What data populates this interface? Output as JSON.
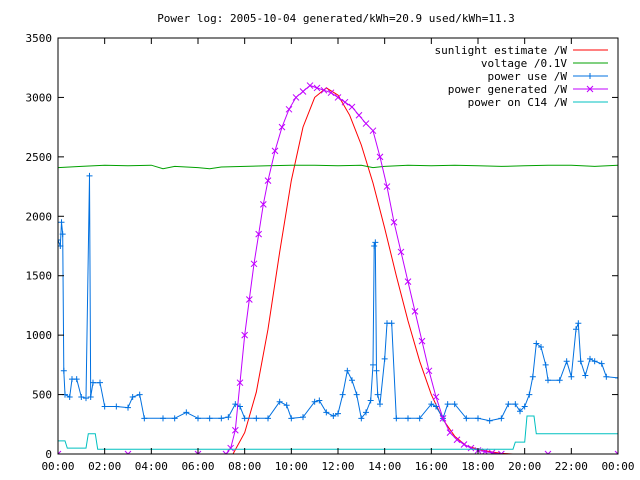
{
  "chart_data": {
    "type": "line",
    "title": "Power log: 2005-10-04 generated/kWh=20.9 used/kWh=11.3",
    "xlabel": "",
    "ylabel": "",
    "xlim": [
      0,
      24
    ],
    "ylim": [
      0,
      3500
    ],
    "x_ticks": [
      "00:00",
      "02:00",
      "04:00",
      "06:00",
      "08:00",
      "10:00",
      "12:00",
      "14:00",
      "16:00",
      "18:00",
      "20:00",
      "22:00",
      "00:00"
    ],
    "y_ticks": [
      0,
      500,
      1000,
      1500,
      2000,
      2500,
      3000,
      3500
    ],
    "grid": false,
    "legend_position": "top-right",
    "series": [
      {
        "name": "sunlight estimate /W",
        "color": "#ff0000",
        "marker": "none",
        "points": [
          [
            7.5,
            0
          ],
          [
            8.0,
            180
          ],
          [
            8.5,
            520
          ],
          [
            9.0,
            1050
          ],
          [
            9.5,
            1700
          ],
          [
            10.0,
            2300
          ],
          [
            10.5,
            2750
          ],
          [
            11.0,
            3000
          ],
          [
            11.5,
            3080
          ],
          [
            12.0,
            3020
          ],
          [
            12.5,
            2850
          ],
          [
            13.0,
            2600
          ],
          [
            13.5,
            2280
          ],
          [
            14.0,
            1900
          ],
          [
            14.5,
            1500
          ],
          [
            15.0,
            1120
          ],
          [
            15.5,
            780
          ],
          [
            16.0,
            500
          ],
          [
            16.5,
            290
          ],
          [
            17.0,
            150
          ],
          [
            17.5,
            70
          ],
          [
            18.0,
            40
          ],
          [
            18.5,
            20
          ],
          [
            19.0,
            5
          ],
          [
            19.5,
            0
          ]
        ]
      },
      {
        "name": "voltage /0.1V",
        "color": "#00a000",
        "marker": "none",
        "points": [
          [
            0.0,
            2410
          ],
          [
            1.0,
            2420
          ],
          [
            2.0,
            2430
          ],
          [
            3.0,
            2425
          ],
          [
            4.0,
            2430
          ],
          [
            4.5,
            2400
          ],
          [
            5.0,
            2420
          ],
          [
            6.0,
            2410
          ],
          [
            6.5,
            2400
          ],
          [
            7.0,
            2415
          ],
          [
            8.0,
            2420
          ],
          [
            9.0,
            2425
          ],
          [
            10.0,
            2430
          ],
          [
            11.0,
            2430
          ],
          [
            12.0,
            2425
          ],
          [
            13.0,
            2430
          ],
          [
            13.5,
            2410
          ],
          [
            14.0,
            2420
          ],
          [
            15.0,
            2430
          ],
          [
            16.0,
            2425
          ],
          [
            17.0,
            2430
          ],
          [
            18.0,
            2425
          ],
          [
            19.0,
            2420
          ],
          [
            20.0,
            2425
          ],
          [
            21.0,
            2430
          ],
          [
            22.0,
            2430
          ],
          [
            23.0,
            2420
          ],
          [
            24.0,
            2430
          ]
        ]
      },
      {
        "name": "power use /W",
        "color": "#0070e0",
        "marker": "plus",
        "points": [
          [
            0.0,
            1800
          ],
          [
            0.1,
            1750
          ],
          [
            0.15,
            1950
          ],
          [
            0.2,
            1850
          ],
          [
            0.25,
            700
          ],
          [
            0.3,
            500
          ],
          [
            0.5,
            480
          ],
          [
            0.6,
            630
          ],
          [
            0.8,
            630
          ],
          [
            1.0,
            480
          ],
          [
            1.2,
            470
          ],
          [
            1.35,
            2340
          ],
          [
            1.4,
            480
          ],
          [
            1.5,
            600
          ],
          [
            1.8,
            600
          ],
          [
            2.0,
            400
          ],
          [
            2.5,
            400
          ],
          [
            3.0,
            390
          ],
          [
            3.2,
            480
          ],
          [
            3.5,
            500
          ],
          [
            3.7,
            300
          ],
          [
            4.5,
            300
          ],
          [
            5.0,
            300
          ],
          [
            5.5,
            350
          ],
          [
            6.0,
            300
          ],
          [
            6.5,
            300
          ],
          [
            7.0,
            300
          ],
          [
            7.3,
            310
          ],
          [
            7.6,
            420
          ],
          [
            7.8,
            400
          ],
          [
            8.0,
            300
          ],
          [
            8.5,
            300
          ],
          [
            9.0,
            300
          ],
          [
            9.5,
            440
          ],
          [
            9.8,
            410
          ],
          [
            10.0,
            300
          ],
          [
            10.5,
            310
          ],
          [
            11.0,
            440
          ],
          [
            11.2,
            450
          ],
          [
            11.5,
            350
          ],
          [
            11.8,
            320
          ],
          [
            12.0,
            340
          ],
          [
            12.2,
            500
          ],
          [
            12.4,
            700
          ],
          [
            12.6,
            620
          ],
          [
            12.8,
            500
          ],
          [
            13.0,
            300
          ],
          [
            13.2,
            350
          ],
          [
            13.4,
            450
          ],
          [
            13.5,
            750
          ],
          [
            13.55,
            1750
          ],
          [
            13.6,
            1780
          ],
          [
            13.65,
            700
          ],
          [
            13.7,
            500
          ],
          [
            13.8,
            420
          ],
          [
            14.0,
            800
          ],
          [
            14.1,
            1100
          ],
          [
            14.3,
            1100
          ],
          [
            14.5,
            300
          ],
          [
            15.0,
            300
          ],
          [
            15.5,
            300
          ],
          [
            16.0,
            420
          ],
          [
            16.2,
            400
          ],
          [
            16.5,
            300
          ],
          [
            16.7,
            420
          ],
          [
            17.0,
            420
          ],
          [
            17.5,
            300
          ],
          [
            18.0,
            300
          ],
          [
            18.5,
            280
          ],
          [
            19.0,
            300
          ],
          [
            19.3,
            420
          ],
          [
            19.6,
            420
          ],
          [
            19.8,
            360
          ],
          [
            20.0,
            400
          ],
          [
            20.2,
            500
          ],
          [
            20.35,
            650
          ],
          [
            20.5,
            930
          ],
          [
            20.7,
            900
          ],
          [
            20.9,
            750
          ],
          [
            21.0,
            620
          ],
          [
            21.5,
            620
          ],
          [
            21.8,
            780
          ],
          [
            22.0,
            650
          ],
          [
            22.2,
            1050
          ],
          [
            22.3,
            1100
          ],
          [
            22.4,
            780
          ],
          [
            22.6,
            660
          ],
          [
            22.8,
            800
          ],
          [
            23.0,
            780
          ],
          [
            23.3,
            760
          ],
          [
            23.5,
            650
          ],
          [
            24.0,
            640
          ]
        ]
      },
      {
        "name": "power generated /W",
        "color": "#c000ff",
        "marker": "x",
        "points": [
          [
            0.0,
            0
          ],
          [
            3.0,
            0
          ],
          [
            6.0,
            0
          ],
          [
            7.2,
            0
          ],
          [
            7.4,
            50
          ],
          [
            7.6,
            200
          ],
          [
            7.8,
            600
          ],
          [
            8.0,
            1000
          ],
          [
            8.2,
            1300
          ],
          [
            8.4,
            1600
          ],
          [
            8.6,
            1850
          ],
          [
            8.8,
            2100
          ],
          [
            9.0,
            2300
          ],
          [
            9.3,
            2550
          ],
          [
            9.6,
            2750
          ],
          [
            9.9,
            2900
          ],
          [
            10.2,
            3000
          ],
          [
            10.5,
            3050
          ],
          [
            10.8,
            3100
          ],
          [
            11.1,
            3080
          ],
          [
            11.4,
            3060
          ],
          [
            11.7,
            3040
          ],
          [
            12.0,
            3000
          ],
          [
            12.3,
            2960
          ],
          [
            12.6,
            2920
          ],
          [
            12.9,
            2850
          ],
          [
            13.2,
            2780
          ],
          [
            13.5,
            2720
          ],
          [
            13.8,
            2500
          ],
          [
            14.1,
            2250
          ],
          [
            14.4,
            1950
          ],
          [
            14.7,
            1700
          ],
          [
            15.0,
            1450
          ],
          [
            15.3,
            1200
          ],
          [
            15.6,
            950
          ],
          [
            15.9,
            700
          ],
          [
            16.2,
            480
          ],
          [
            16.5,
            300
          ],
          [
            16.8,
            180
          ],
          [
            17.1,
            120
          ],
          [
            17.4,
            80
          ],
          [
            17.7,
            50
          ],
          [
            18.0,
            30
          ],
          [
            18.3,
            20
          ],
          [
            18.6,
            10
          ],
          [
            19.0,
            0
          ],
          [
            21.0,
            0
          ],
          [
            24.0,
            0
          ]
        ]
      },
      {
        "name": "power on C14 /W",
        "color": "#00c0c0",
        "marker": "none",
        "points": [
          [
            0.0,
            110
          ],
          [
            0.3,
            110
          ],
          [
            0.4,
            50
          ],
          [
            1.2,
            50
          ],
          [
            1.3,
            170
          ],
          [
            1.6,
            170
          ],
          [
            1.7,
            40
          ],
          [
            5.0,
            40
          ],
          [
            10.0,
            40
          ],
          [
            15.0,
            40
          ],
          [
            19.5,
            40
          ],
          [
            19.6,
            100
          ],
          [
            20.0,
            100
          ],
          [
            20.1,
            320
          ],
          [
            20.4,
            320
          ],
          [
            20.5,
            170
          ],
          [
            22.0,
            170
          ],
          [
            24.0,
            170
          ]
        ]
      }
    ]
  }
}
